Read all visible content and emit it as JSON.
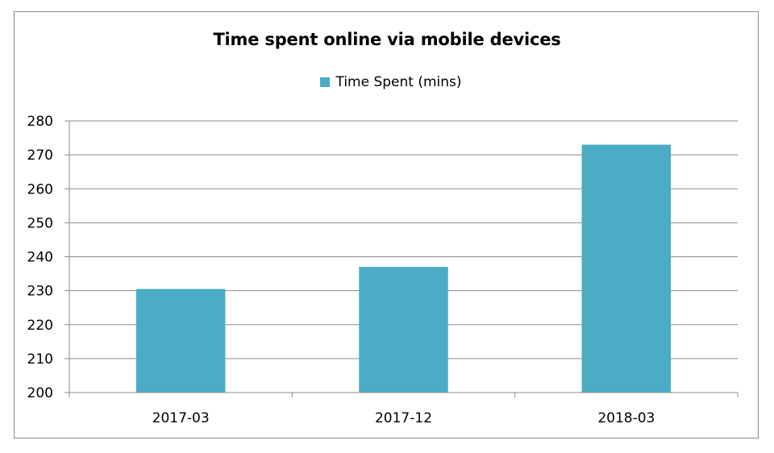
{
  "chart_data": {
    "type": "bar",
    "title": "Time spent online via mobile devices",
    "xlabel": "",
    "ylabel": "",
    "categories": [
      "2017-03",
      "2017-12",
      "2018-03"
    ],
    "series": [
      {
        "name": "Time Spent (mins)",
        "values": [
          230.5,
          237,
          273
        ],
        "color": "#4bacc6"
      }
    ],
    "ylim": [
      200,
      280
    ],
    "yticks": [
      200,
      210,
      220,
      230,
      240,
      250,
      260,
      270,
      280
    ],
    "ytick_labels": [
      "200",
      "210",
      "220",
      "230",
      "240",
      "250",
      "260",
      "270",
      "280"
    ],
    "grid": true,
    "legend_position": "top-center"
  },
  "colors": {
    "bar": "#4bacc6",
    "grid": "#8c8c8c",
    "border": "#8c8c8c"
  }
}
